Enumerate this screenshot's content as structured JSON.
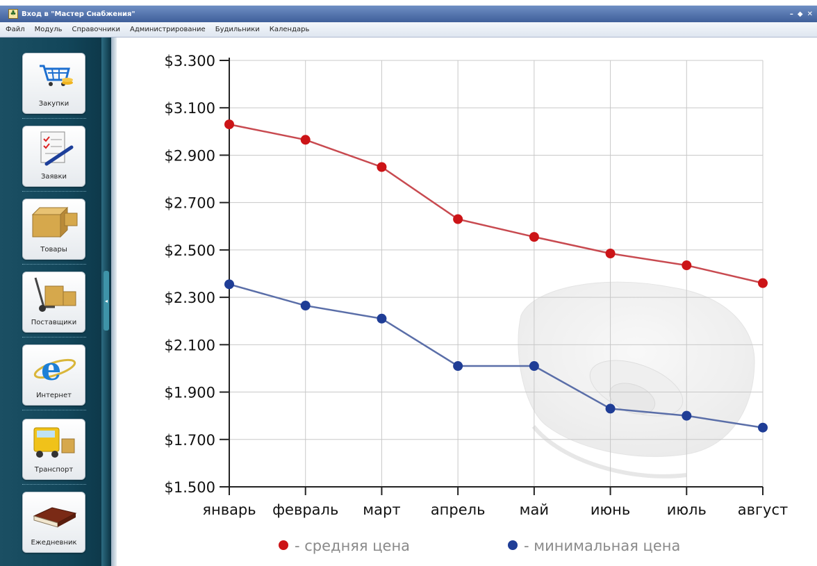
{
  "window": {
    "title": "Вход в \"Мастер Снабжения\"",
    "buttons": [
      "–",
      "◆",
      "✕"
    ]
  },
  "menu": {
    "items": [
      "Файл",
      "Модуль",
      "Справочники",
      "Администрирование",
      "Будильники",
      "Календарь"
    ]
  },
  "sidebar": {
    "items": [
      {
        "label": "Закупки",
        "icon": "shopping-cart-icon"
      },
      {
        "label": "Заявки",
        "icon": "request-document-icon"
      },
      {
        "label": "Товары",
        "icon": "boxes-icon"
      },
      {
        "label": "Поставщики",
        "icon": "hand-truck-icon"
      },
      {
        "label": "Интернет",
        "icon": "internet-explorer-icon"
      },
      {
        "label": "Транспорт",
        "icon": "truck-icon"
      },
      {
        "label": "Ежедневник",
        "icon": "diary-book-icon"
      }
    ]
  },
  "chart_data": {
    "type": "line",
    "categories": [
      "январь",
      "февраль",
      "март",
      "апрель",
      "май",
      "июнь",
      "июль",
      "август"
    ],
    "ylim": [
      1500,
      3300
    ],
    "yticks": [
      "$3.300",
      "$3.100",
      "$2.900",
      "$2.700",
      "$2.500",
      "$2.300",
      "$2.100",
      "$1.900",
      "$1.700",
      "$1.500"
    ],
    "ytick_values": [
      3300,
      3100,
      2900,
      2700,
      2500,
      2300,
      2100,
      1900,
      1700,
      1500
    ],
    "grid": true,
    "legend": "bottom",
    "series": [
      {
        "name": "- средняя цена",
        "color": "#cc1417",
        "line_color": "#c84a50",
        "values": [
          3030,
          2965,
          2850,
          2630,
          2555,
          2485,
          2435,
          2360
        ]
      },
      {
        "name": "- минимальная цена",
        "color": "#1f3d96",
        "line_color": "#5a6ea8",
        "values": [
          2355,
          2265,
          2210,
          2010,
          2010,
          1830,
          1800,
          1750
        ]
      }
    ]
  }
}
